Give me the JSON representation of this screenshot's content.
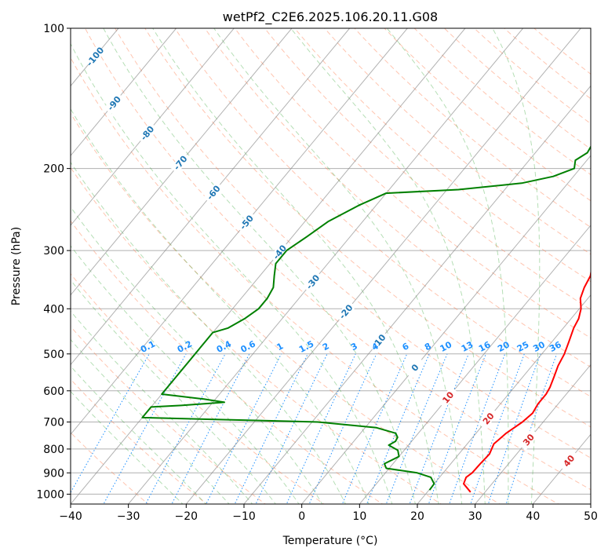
{
  "chart_data": {
    "type": "line",
    "subtype": "skew-t log-p diagram",
    "title": "wetPf2_C2E6.2025.106.20.11.G08",
    "xlabel": "Temperature (°C)",
    "ylabel": "Pressure (hPa)",
    "xlim": [
      -40,
      50
    ],
    "ylim": [
      1050,
      100
    ],
    "y_scale": "log",
    "x_ticks": [
      "−40",
      "−30",
      "−20",
      "−10",
      "0",
      "10",
      "20",
      "30",
      "40",
      "50"
    ],
    "y_ticks": [
      {
        "p": 100,
        "label": "100"
      },
      {
        "p": 200,
        "label": "200"
      },
      {
        "p": 300,
        "label": "300"
      },
      {
        "p": 400,
        "label": "400"
      },
      {
        "p": 500,
        "label": "500"
      },
      {
        "p": 600,
        "label": "600"
      },
      {
        "p": 700,
        "label": "700"
      },
      {
        "p": 800,
        "label": "800"
      },
      {
        "p": 900,
        "label": "900"
      },
      {
        "p": 1000,
        "label": "1000"
      }
    ],
    "grid": true,
    "colors": {
      "temperature": "#ff0000",
      "dewpoint": "#008000",
      "dry_adiabat": "#ff7f50",
      "moist_adiabat": "#2ca02c",
      "mixing_ratio": "#1e90ff",
      "skewed_isotherm": "#808080",
      "isotherm_label_blue": "#1f77b4",
      "isotherm_label_red": "#d62728",
      "mixing_ratio_label": "#1e90ff"
    },
    "series": [
      {
        "role": "temperature",
        "points": [
          {
            "p": 990,
            "t": 27.5
          },
          {
            "p": 950,
            "t": 25.1
          },
          {
            "p": 920,
            "t": 24.6
          },
          {
            "p": 900,
            "t": 25.0
          },
          {
            "p": 860,
            "t": 25.1
          },
          {
            "p": 820,
            "t": 25.3
          },
          {
            "p": 780,
            "t": 24.6
          },
          {
            "p": 740,
            "t": 25.2
          },
          {
            "p": 700,
            "t": 26.4
          },
          {
            "p": 670,
            "t": 26.9
          },
          {
            "p": 640,
            "t": 26.5
          },
          {
            "p": 610,
            "t": 26.5
          },
          {
            "p": 590,
            "t": 26.2
          },
          {
            "p": 560,
            "t": 25.4
          },
          {
            "p": 530,
            "t": 24.5
          },
          {
            "p": 500,
            "t": 23.9
          },
          {
            "p": 470,
            "t": 22.9
          },
          {
            "p": 440,
            "t": 21.8
          },
          {
            "p": 420,
            "t": 21.3
          },
          {
            "p": 400,
            "t": 20.3
          },
          {
            "p": 380,
            "t": 18.7
          },
          {
            "p": 360,
            "t": 17.8
          },
          {
            "p": 340,
            "t": 17.2
          },
          {
            "p": 320,
            "t": 15.8
          },
          {
            "p": 300,
            "t": 14.4
          },
          {
            "p": 280,
            "t": 13.1
          },
          {
            "p": 260,
            "t": 11.8
          },
          {
            "p": 240,
            "t": 10.7
          },
          {
            "p": 220,
            "t": 9.2
          },
          {
            "p": 200,
            "t": 7.0
          },
          {
            "p": 180,
            "t": 5.0
          },
          {
            "p": 160,
            "t": 3.1
          },
          {
            "p": 140,
            "t": 0.8
          },
          {
            "p": 120,
            "t": -0.7
          },
          {
            "p": 110,
            "t": -1.0
          },
          {
            "p": 104,
            "t": 0.1
          },
          {
            "p": 100,
            "t": 1.7
          }
        ]
      },
      {
        "role": "dewpoint",
        "points": [
          {
            "p": 980,
            "t": 20.1
          },
          {
            "p": 950,
            "t": 20.0
          },
          {
            "p": 920,
            "t": 18.5
          },
          {
            "p": 900,
            "t": 15.5
          },
          {
            "p": 880,
            "t": 9.5
          },
          {
            "p": 860,
            "t": 8.5
          },
          {
            "p": 830,
            "t": 10.0
          },
          {
            "p": 805,
            "t": 8.9
          },
          {
            "p": 785,
            "t": 6.6
          },
          {
            "p": 770,
            "t": 7.2
          },
          {
            "p": 755,
            "t": 7.0
          },
          {
            "p": 740,
            "t": 6.1
          },
          {
            "p": 720,
            "t": 2.0
          },
          {
            "p": 700,
            "t": -9.0
          },
          {
            "p": 685,
            "t": -40.0
          },
          {
            "p": 650,
            "t": -40.0
          },
          {
            "p": 645,
            "t": -35.0
          },
          {
            "p": 635,
            "t": -28.0
          },
          {
            "p": 625,
            "t": -32.0
          },
          {
            "p": 610,
            "t": -40.0
          },
          {
            "p": 450,
            "t": -40.0
          },
          {
            "p": 440,
            "t": -38.0
          },
          {
            "p": 420,
            "t": -36.5
          },
          {
            "p": 400,
            "t": -35.5
          },
          {
            "p": 380,
            "t": -35.5
          },
          {
            "p": 360,
            "t": -36.0
          },
          {
            "p": 340,
            "t": -37.5
          },
          {
            "p": 320,
            "t": -39.0
          },
          {
            "p": 300,
            "t": -39.0
          },
          {
            "p": 280,
            "t": -37.5
          },
          {
            "p": 260,
            "t": -36.0
          },
          {
            "p": 240,
            "t": -33.0
          },
          {
            "p": 226,
            "t": -30.0
          },
          {
            "p": 222,
            "t": -18.0
          },
          {
            "p": 215,
            "t": -8.0
          },
          {
            "p": 208,
            "t": -3.5
          },
          {
            "p": 200,
            "t": -1.0
          },
          {
            "p": 192,
            "t": -2.0
          },
          {
            "p": 185,
            "t": -1.0
          },
          {
            "p": 175,
            "t": -1.5
          },
          {
            "p": 160,
            "t": -1.5
          },
          {
            "p": 145,
            "t": -1.0
          },
          {
            "p": 130,
            "t": -1.0
          },
          {
            "p": 115,
            "t": -2.0
          },
          {
            "p": 100,
            "t": -1.5
          }
        ]
      }
    ],
    "isotherm_labels": [
      {
        "t": -100,
        "label": "-100",
        "color": "blue"
      },
      {
        "t": -90,
        "label": "-90",
        "color": "blue"
      },
      {
        "t": -80,
        "label": "-80",
        "color": "blue"
      },
      {
        "t": -70,
        "label": "-70",
        "color": "blue"
      },
      {
        "t": -60,
        "label": "-60",
        "color": "blue"
      },
      {
        "t": -50,
        "label": "-50",
        "color": "blue"
      },
      {
        "t": -40,
        "label": "-40",
        "color": "blue"
      },
      {
        "t": -30,
        "label": "-30",
        "color": "blue"
      },
      {
        "t": -20,
        "label": "-20",
        "color": "blue"
      },
      {
        "t": -10,
        "label": "-10",
        "color": "blue"
      },
      {
        "t": 0,
        "label": "0",
        "color": "blue"
      },
      {
        "t": 10,
        "label": "10",
        "color": "red"
      },
      {
        "t": 20,
        "label": "20",
        "color": "red"
      },
      {
        "t": 30,
        "label": "30",
        "color": "red"
      },
      {
        "t": 40,
        "label": "40",
        "color": "red"
      }
    ],
    "mixing_ratio_labels": [
      "0.1",
      "0.2",
      "0.4",
      "0.6",
      "1",
      "1.5",
      "2",
      "3",
      "4",
      "6",
      "8",
      "10",
      "13",
      "16",
      "20",
      "25",
      "30",
      "36"
    ]
  }
}
